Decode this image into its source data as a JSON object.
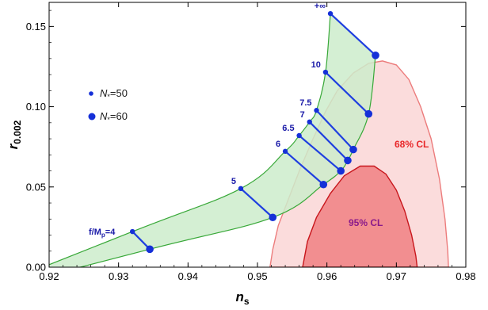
{
  "chart_data": {
    "type": "line",
    "title": "",
    "xlabel": "n",
    "xlabel_sub": "s",
    "ylabel": "r",
    "ylabel_sub": "0.002",
    "xlim": [
      0.92,
      0.98
    ],
    "ylim": [
      0.0,
      0.165
    ],
    "x_ticks": [
      "0.92",
      "0.93",
      "0.94",
      "0.95",
      "0.96",
      "0.97",
      "0.98"
    ],
    "y_ticks": [
      "0.00",
      "0.05",
      "0.10",
      "0.15"
    ],
    "grid": false,
    "legend_position": "left",
    "legend": [
      {
        "label_main": "N",
        "label_sub": "*",
        "label_rest": "=50",
        "marker": "small-dot"
      },
      {
        "label_main": "N",
        "label_sub": "*",
        "label_rest": "=60",
        "marker": "large-dot"
      }
    ],
    "series": [
      {
        "name": "N*=50",
        "points": [
          {
            "ns": 0.932,
            "r": 0.0222,
            "label": "f/M_p=4"
          },
          {
            "ns": 0.9476,
            "r": 0.049,
            "label": "5"
          },
          {
            "ns": 0.954,
            "r": 0.0722,
            "label": "6"
          },
          {
            "ns": 0.956,
            "r": 0.082,
            "label": "6.5"
          },
          {
            "ns": 0.9575,
            "r": 0.0905,
            "label": "7"
          },
          {
            "ns": 0.9585,
            "r": 0.0977,
            "label": "7.5"
          },
          {
            "ns": 0.9598,
            "r": 0.1215,
            "label": "10"
          },
          {
            "ns": 0.9605,
            "r": 0.158,
            "label": "+∞"
          }
        ]
      },
      {
        "name": "N*=60",
        "points": [
          {
            "ns": 0.9345,
            "r": 0.0112
          },
          {
            "ns": 0.9522,
            "r": 0.031
          },
          {
            "ns": 0.9595,
            "r": 0.0515
          },
          {
            "ns": 0.962,
            "r": 0.06
          },
          {
            "ns": 0.963,
            "r": 0.0665
          },
          {
            "ns": 0.9638,
            "r": 0.0733
          },
          {
            "ns": 0.966,
            "r": 0.0955
          },
          {
            "ns": 0.967,
            "r": 0.132
          }
        ]
      }
    ],
    "annotation_label_main": "f/M",
    "annotation_label_sub": "p",
    "annotation_label_rest": "=4",
    "regions": [
      {
        "label": "68% CL",
        "fill": "#fbdcdc",
        "stroke": "#ec7c7c",
        "outline": [
          [
            0.9518,
            0.0
          ],
          [
            0.9522,
            0.011
          ],
          [
            0.953,
            0.026
          ],
          [
            0.9545,
            0.043
          ],
          [
            0.9562,
            0.062
          ],
          [
            0.958,
            0.08
          ],
          [
            0.9598,
            0.097
          ],
          [
            0.9615,
            0.11
          ],
          [
            0.9638,
            0.121
          ],
          [
            0.966,
            0.127
          ],
          [
            0.968,
            0.1285
          ],
          [
            0.97,
            0.126
          ],
          [
            0.9718,
            0.117
          ],
          [
            0.9735,
            0.1
          ],
          [
            0.975,
            0.08
          ],
          [
            0.9762,
            0.055
          ],
          [
            0.977,
            0.03
          ],
          [
            0.9774,
            0.01
          ],
          [
            0.9775,
            0.0
          ]
        ]
      },
      {
        "label": "95% CL",
        "fill": "#f28e90",
        "stroke": "#c8161c",
        "outline": [
          [
            0.9565,
            0.0
          ],
          [
            0.9572,
            0.016
          ],
          [
            0.9585,
            0.031
          ],
          [
            0.9605,
            0.046
          ],
          [
            0.9625,
            0.057
          ],
          [
            0.9648,
            0.063
          ],
          [
            0.9668,
            0.063
          ],
          [
            0.9685,
            0.058
          ],
          [
            0.97,
            0.048
          ],
          [
            0.9712,
            0.035
          ],
          [
            0.9722,
            0.02
          ],
          [
            0.9728,
            0.007
          ],
          [
            0.973,
            0.0
          ]
        ]
      }
    ],
    "colors": {
      "band_fill": "#cdeccb",
      "band_stroke": "#38a838",
      "segment": "#1f3fe0",
      "marker": "#1530d8",
      "label": "#1a1aa8"
    }
  }
}
